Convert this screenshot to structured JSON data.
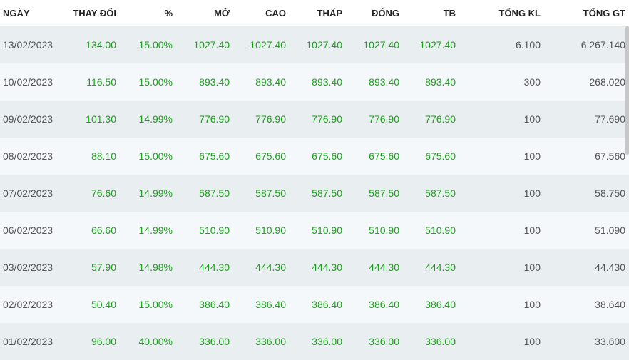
{
  "headers": [
    "NGÀY",
    "THAY ĐỔI",
    "%",
    "MỞ",
    "CAO",
    "THẤP",
    "ĐÓNG",
    "TB",
    "TỔNG KL",
    "TỔNG GT"
  ],
  "colors": {
    "up": "#1aa31a",
    "neutral": "#555555"
  },
  "rows": [
    [
      "13/02/2023",
      "134.00",
      "15.00%",
      "1027.40",
      "1027.40",
      "1027.40",
      "1027.40",
      "1027.40",
      "6.100",
      "6.267.140"
    ],
    [
      "10/02/2023",
      "116.50",
      "15.00%",
      "893.40",
      "893.40",
      "893.40",
      "893.40",
      "893.40",
      "300",
      "268.020"
    ],
    [
      "09/02/2023",
      "101.30",
      "14.99%",
      "776.90",
      "776.90",
      "776.90",
      "776.90",
      "776.90",
      "100",
      "77.690"
    ],
    [
      "08/02/2023",
      "88.10",
      "15.00%",
      "675.60",
      "675.60",
      "675.60",
      "675.60",
      "675.60",
      "100",
      "67.560"
    ],
    [
      "07/02/2023",
      "76.60",
      "14.99%",
      "587.50",
      "587.50",
      "587.50",
      "587.50",
      "587.50",
      "100",
      "58.750"
    ],
    [
      "06/02/2023",
      "66.60",
      "14.99%",
      "510.90",
      "510.90",
      "510.90",
      "510.90",
      "510.90",
      "100",
      "51.090"
    ],
    [
      "03/02/2023",
      "57.90",
      "14.98%",
      "444.30",
      "444.30",
      "444.30",
      "444.30",
      "444.30",
      "100",
      "44.430"
    ],
    [
      "02/02/2023",
      "50.40",
      "15.00%",
      "386.40",
      "386.40",
      "386.40",
      "386.40",
      "386.40",
      "100",
      "38.640"
    ],
    [
      "01/02/2023",
      "96.00",
      "40.00%",
      "336.00",
      "336.00",
      "336.00",
      "336.00",
      "336.00",
      "100",
      "33.600"
    ]
  ]
}
